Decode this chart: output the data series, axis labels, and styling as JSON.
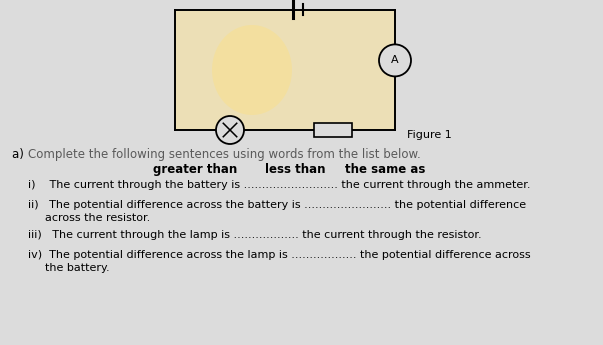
{
  "bg_color": "#dcdcdc",
  "title_a_prefix": "a)  ",
  "title_a_main": "Complete the following sentences using words from the list below.",
  "title_a_main_color": "#5a5a5a",
  "title_a_prefix_color": "#000000",
  "words": [
    "greater than",
    "less than",
    "the same as"
  ],
  "sentence_i_part1": "i)    The current through the battery is ",
  "sentence_i_dots": ".......................... ",
  "sentence_i_part2": "the current through the ammeter.",
  "sentence_ii_part1": "ii)   The potential difference across the battery is ",
  "sentence_ii_dots": "........................ ",
  "sentence_ii_part2": "the potential difference",
  "sentence_ii_cont": "      across the resistor.",
  "sentence_iii_part1": "iii)   The current through the lamp is ",
  "sentence_iii_dots": ".................. ",
  "sentence_iii_part2": "the current through the resistor.",
  "sentence_iv_part1": "iv)  The potential difference across the lamp is ",
  "sentence_iv_dots": ".................. ",
  "sentence_iv_part2": "the potential difference across",
  "sentence_iv_cont": "      the battery.",
  "figure_label": "Figure 1",
  "circuit_bg": "#f0e0b0",
  "glow_color": "#f8e8a0"
}
